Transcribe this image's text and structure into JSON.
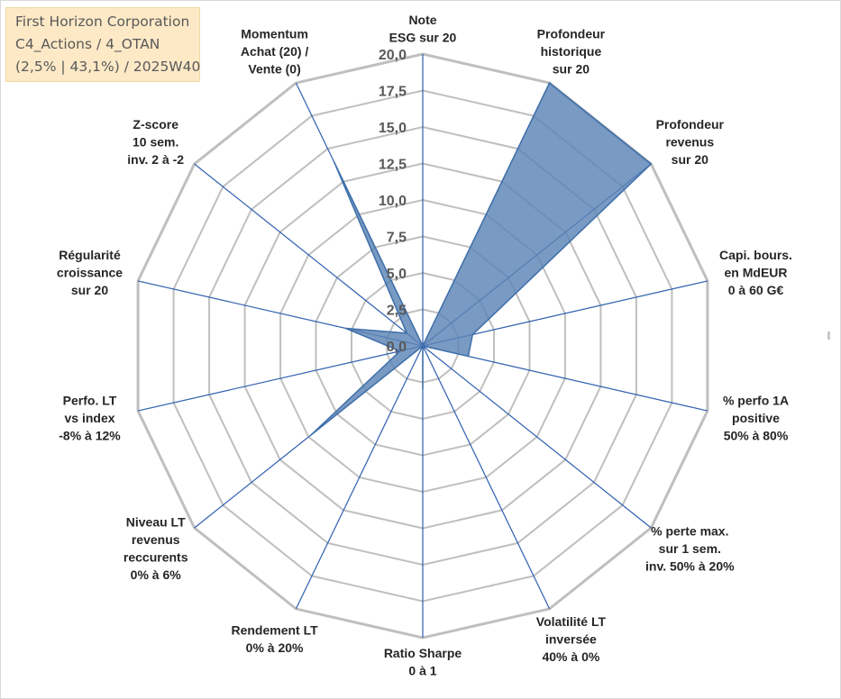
{
  "title_box": {
    "line1": "First Horizon Corporation",
    "line2": "C4_Actions / 4_OTAN",
    "line3": "(2,5% | 43,1%) / 2025W40"
  },
  "chart_data": {
    "type": "radar",
    "title": "",
    "rlim": [
      0,
      20
    ],
    "tick_labels": [
      "0,0",
      "2,5",
      "5,0",
      "7,5",
      "10,0",
      "12,5",
      "15,0",
      "17,5",
      "20,0"
    ],
    "grid": true,
    "legend": "none",
    "colors": {
      "fill": "#5b84b5",
      "stroke": "#3f6faa",
      "grid": "#bfbfbf",
      "axis": "#2e5fb0"
    },
    "axes": [
      [
        "Note",
        "ESG sur 20"
      ],
      [
        "Profondeur",
        "historique",
        "sur 20"
      ],
      [
        "Profondeur",
        "revenus",
        "sur 20"
      ],
      [
        "Capi. bours.",
        "en MdEUR",
        "0 à 60 G€"
      ],
      [
        "% perfo 1A",
        "positive",
        "50% à 80%"
      ],
      [
        "% perte max.",
        "sur 1 sem.",
        "inv. 50% à 20%"
      ],
      [
        "Volatilité LT",
        "inversée",
        "40% à 0%"
      ],
      [
        "Ratio Sharpe",
        "0 à 1"
      ],
      [
        "Rendement LT",
        "0% à 20%"
      ],
      [
        "Niveau LT",
        "revenus",
        "reccurents",
        "0% à 6%"
      ],
      [
        "Perfo. LT",
        "vs index",
        "-8% à 12%"
      ],
      [
        "Régularité",
        "croissance",
        "sur 20"
      ],
      [
        "Z-score",
        "10 sem.",
        "inv. 2 à -2"
      ],
      [
        "Momentum",
        "Achat (20) /",
        "Vente (0)"
      ]
    ],
    "series": [
      {
        "values": [
          0,
          20,
          20,
          3.5,
          3.2,
          0,
          0,
          2.9,
          0,
          9.8,
          1.6,
          5.4,
          1.4,
          14
        ]
      }
    ]
  }
}
